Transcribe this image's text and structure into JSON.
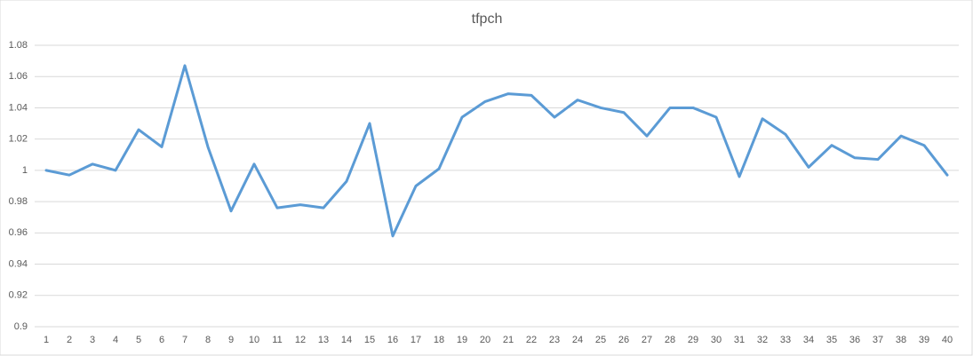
{
  "chart_data": {
    "type": "line",
    "title": "tfpch",
    "categories": [
      "1",
      "2",
      "3",
      "4",
      "5",
      "6",
      "7",
      "8",
      "9",
      "10",
      "11",
      "12",
      "13",
      "14",
      "15",
      "16",
      "17",
      "18",
      "19",
      "20",
      "21",
      "22",
      "23",
      "24",
      "25",
      "26",
      "27",
      "28",
      "29",
      "30",
      "31",
      "32",
      "33",
      "34",
      "35",
      "36",
      "37",
      "38",
      "39",
      "40"
    ],
    "values": [
      1.0,
      0.997,
      1.004,
      1.0,
      1.026,
      1.015,
      1.067,
      1.015,
      0.974,
      1.004,
      0.976,
      0.978,
      0.976,
      0.993,
      1.03,
      0.958,
      0.99,
      1.001,
      1.034,
      1.044,
      1.049,
      1.048,
      1.034,
      1.045,
      1.04,
      1.037,
      1.022,
      1.04,
      1.04,
      1.034,
      0.996,
      1.033,
      1.023,
      1.002,
      1.016,
      1.008,
      1.007,
      1.022,
      1.016,
      0.997
    ],
    "color": "#5b9bd5",
    "ylim": [
      0.9,
      1.08
    ],
    "yticks": [
      0.9,
      0.92,
      0.94,
      0.96,
      0.98,
      1,
      1.02,
      1.04,
      1.06,
      1.08
    ],
    "grid": true
  }
}
